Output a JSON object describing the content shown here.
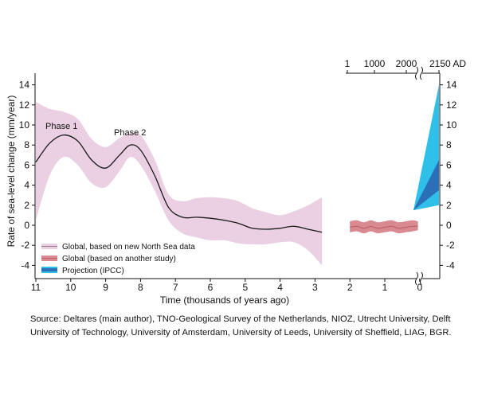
{
  "chart_data": {
    "type": "line",
    "xlabel": "Time (thousands of years ago)",
    "ylabel": "Rate of sea-level change (mm/year)",
    "ylim": [
      -5,
      15
    ],
    "y_ticks": [
      -4,
      -2,
      0,
      2,
      4,
      6,
      8,
      10,
      12,
      14
    ],
    "x_ticks_bottom": [
      "11",
      "10",
      "9",
      "8",
      "7",
      "6",
      "5",
      "4",
      "3",
      "2",
      "1",
      "0"
    ],
    "x_ticks_top": [
      "1",
      "1000",
      "2000",
      "2150 AD"
    ],
    "annotations": [
      "Phase 1",
      "Phase 2"
    ],
    "legend_position": "bottom-left",
    "legend": [
      "Global, based on new North Sea data",
      "Global (based on another study)",
      "Projection (IPCC)"
    ],
    "series": [
      {
        "name": "Global, based on new North Sea data",
        "x_kyr_ago": [
          11.0,
          10.6,
          10.2,
          9.8,
          9.4,
          9.0,
          8.6,
          8.3,
          8.0,
          7.6,
          7.2,
          6.8,
          6.4,
          6.0,
          5.6,
          5.2,
          4.8,
          4.4,
          4.0,
          3.6,
          3.2,
          2.8
        ],
        "y": [
          6.3,
          8.2,
          9.0,
          8.4,
          6.5,
          5.7,
          7.0,
          8.0,
          7.5,
          5.0,
          1.8,
          0.8,
          0.8,
          0.7,
          0.5,
          0.2,
          -0.3,
          -0.4,
          -0.3,
          -0.1,
          -0.4,
          -0.7
        ],
        "lower": [
          0.5,
          5.0,
          6.8,
          6.0,
          4.2,
          3.8,
          5.4,
          6.8,
          6.0,
          3.5,
          0.5,
          -0.8,
          -1.2,
          -1.5,
          -1.5,
          -1.8,
          -1.9,
          -1.9,
          -1.7,
          -1.7,
          -2.5,
          -4.0
        ],
        "upper": [
          12.3,
          11.6,
          11.3,
          10.6,
          8.6,
          7.8,
          8.7,
          9.2,
          9.0,
          6.6,
          3.1,
          2.4,
          2.7,
          2.8,
          2.7,
          2.4,
          1.7,
          1.3,
          1.0,
          1.4,
          2.0,
          2.8
        ],
        "color": "#1a1a1a",
        "band_color": "#ead0e2"
      },
      {
        "name": "Global (based on another study)",
        "x_kyr_ago": [
          2.0,
          1.8,
          1.6,
          1.4,
          1.2,
          1.0,
          0.8,
          0.6,
          0.4,
          0.2,
          0.05
        ],
        "y": [
          -0.2,
          -0.1,
          -0.3,
          -0.1,
          -0.3,
          -0.2,
          -0.1,
          -0.3,
          -0.2,
          -0.1,
          -0.1
        ],
        "lower": [
          -0.7,
          -0.6,
          -0.8,
          -0.6,
          -0.8,
          -0.7,
          -0.6,
          -0.8,
          -0.7,
          -0.6,
          -0.5
        ],
        "upper": [
          0.4,
          0.5,
          0.3,
          0.5,
          0.3,
          0.4,
          0.5,
          0.3,
          0.4,
          0.5,
          0.4
        ],
        "color": "#c0606a",
        "band_color": "#d98a90"
      },
      {
        "name": "Projection (IPCC)",
        "x_year_ad": [
          2000,
          2150
        ],
        "start": 1.5,
        "outer_range": [
          2.0,
          14.0
        ],
        "inner_range": [
          3.5,
          6.5
        ],
        "outer_color": "#2ec0e8",
        "inner_color": "#2a6fb8"
      }
    ]
  },
  "source": "Source: Deltares (main author), TNO-Geological Survey of the Netherlands, NIOZ, Utrecht University, Delft University of Technology, University of Amsterdam, University of Leeds, University of Sheffield, LIAG, BGR."
}
